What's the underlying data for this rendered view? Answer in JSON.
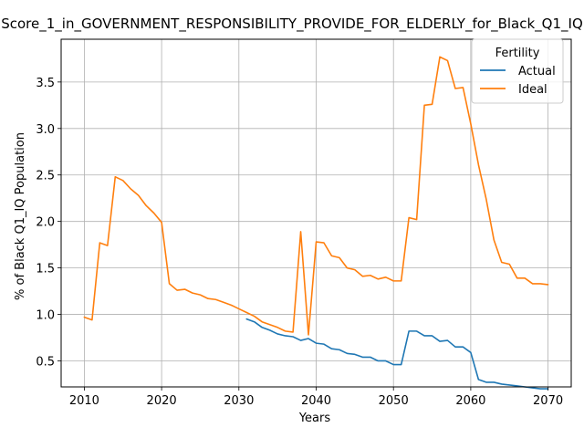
{
  "chart_data": {
    "type": "line",
    "title": "Score_1_in_GOVERNMENT_RESPONSIBILITY_PROVIDE_FOR_ELDERLY_for_Black_Q1_IQ",
    "xlabel": "Years",
    "ylabel": "% of Black Q1_IQ Population",
    "xlim": [
      2007,
      2073
    ],
    "ylim": [
      0.22,
      3.96
    ],
    "xticks": [
      2010,
      2020,
      2030,
      2040,
      2050,
      2060,
      2070
    ],
    "yticks": [
      0.5,
      1.0,
      1.5,
      2.0,
      2.5,
      3.0,
      3.5
    ],
    "ytick_labels": [
      "0.5",
      "1.0",
      "1.5",
      "2.0",
      "2.5",
      "3.0",
      "3.5"
    ],
    "grid": true,
    "legend": {
      "title": "Fertility",
      "placement": "top-right"
    },
    "series": [
      {
        "name": "Actual",
        "color": "#1f77b4",
        "x": [
          2031,
          2032,
          2033,
          2034,
          2035,
          2036,
          2037,
          2038,
          2039,
          2040,
          2041,
          2042,
          2043,
          2044,
          2045,
          2046,
          2047,
          2048,
          2049,
          2050,
          2051,
          2052,
          2053,
          2054,
          2055,
          2056,
          2057,
          2058,
          2059,
          2060,
          2061,
          2062,
          2063,
          2064,
          2065,
          2066,
          2067,
          2068,
          2069,
          2070
        ],
        "y": [
          0.95,
          0.92,
          0.86,
          0.83,
          0.79,
          0.77,
          0.76,
          0.72,
          0.74,
          0.69,
          0.68,
          0.63,
          0.62,
          0.58,
          0.57,
          0.54,
          0.54,
          0.5,
          0.5,
          0.46,
          0.46,
          0.82,
          0.82,
          0.77,
          0.77,
          0.71,
          0.72,
          0.65,
          0.65,
          0.59,
          0.3,
          0.27,
          0.27,
          0.25,
          0.24,
          0.23,
          0.22,
          0.21,
          0.2,
          0.2
        ]
      },
      {
        "name": "Ideal",
        "color": "#ff7f0e",
        "x": [
          2010,
          2011,
          2012,
          2013,
          2014,
          2015,
          2016,
          2017,
          2018,
          2019,
          2020,
          2021,
          2022,
          2023,
          2024,
          2025,
          2026,
          2027,
          2028,
          2029,
          2030,
          2031,
          2032,
          2033,
          2034,
          2035,
          2036,
          2037,
          2038,
          2039,
          2040,
          2041,
          2042,
          2043,
          2044,
          2045,
          2046,
          2047,
          2048,
          2049,
          2050,
          2051,
          2052,
          2053,
          2054,
          2055,
          2056,
          2057,
          2058,
          2059,
          2060,
          2061,
          2062,
          2063,
          2064,
          2065,
          2066,
          2067,
          2068,
          2069,
          2070
        ],
        "y": [
          0.97,
          0.94,
          1.77,
          1.74,
          2.48,
          2.44,
          2.35,
          2.28,
          2.17,
          2.09,
          1.99,
          1.33,
          1.26,
          1.27,
          1.23,
          1.21,
          1.17,
          1.16,
          1.13,
          1.1,
          1.06,
          1.02,
          0.98,
          0.92,
          0.89,
          0.86,
          0.82,
          0.81,
          1.89,
          0.78,
          1.78,
          1.77,
          1.63,
          1.61,
          1.5,
          1.48,
          1.41,
          1.42,
          1.38,
          1.4,
          1.36,
          1.36,
          2.04,
          2.02,
          3.25,
          3.26,
          3.77,
          3.73,
          3.43,
          3.44,
          3.05,
          2.61,
          2.24,
          1.8,
          1.56,
          1.54,
          1.39,
          1.39,
          1.33,
          1.33,
          1.32
        ]
      }
    ]
  }
}
